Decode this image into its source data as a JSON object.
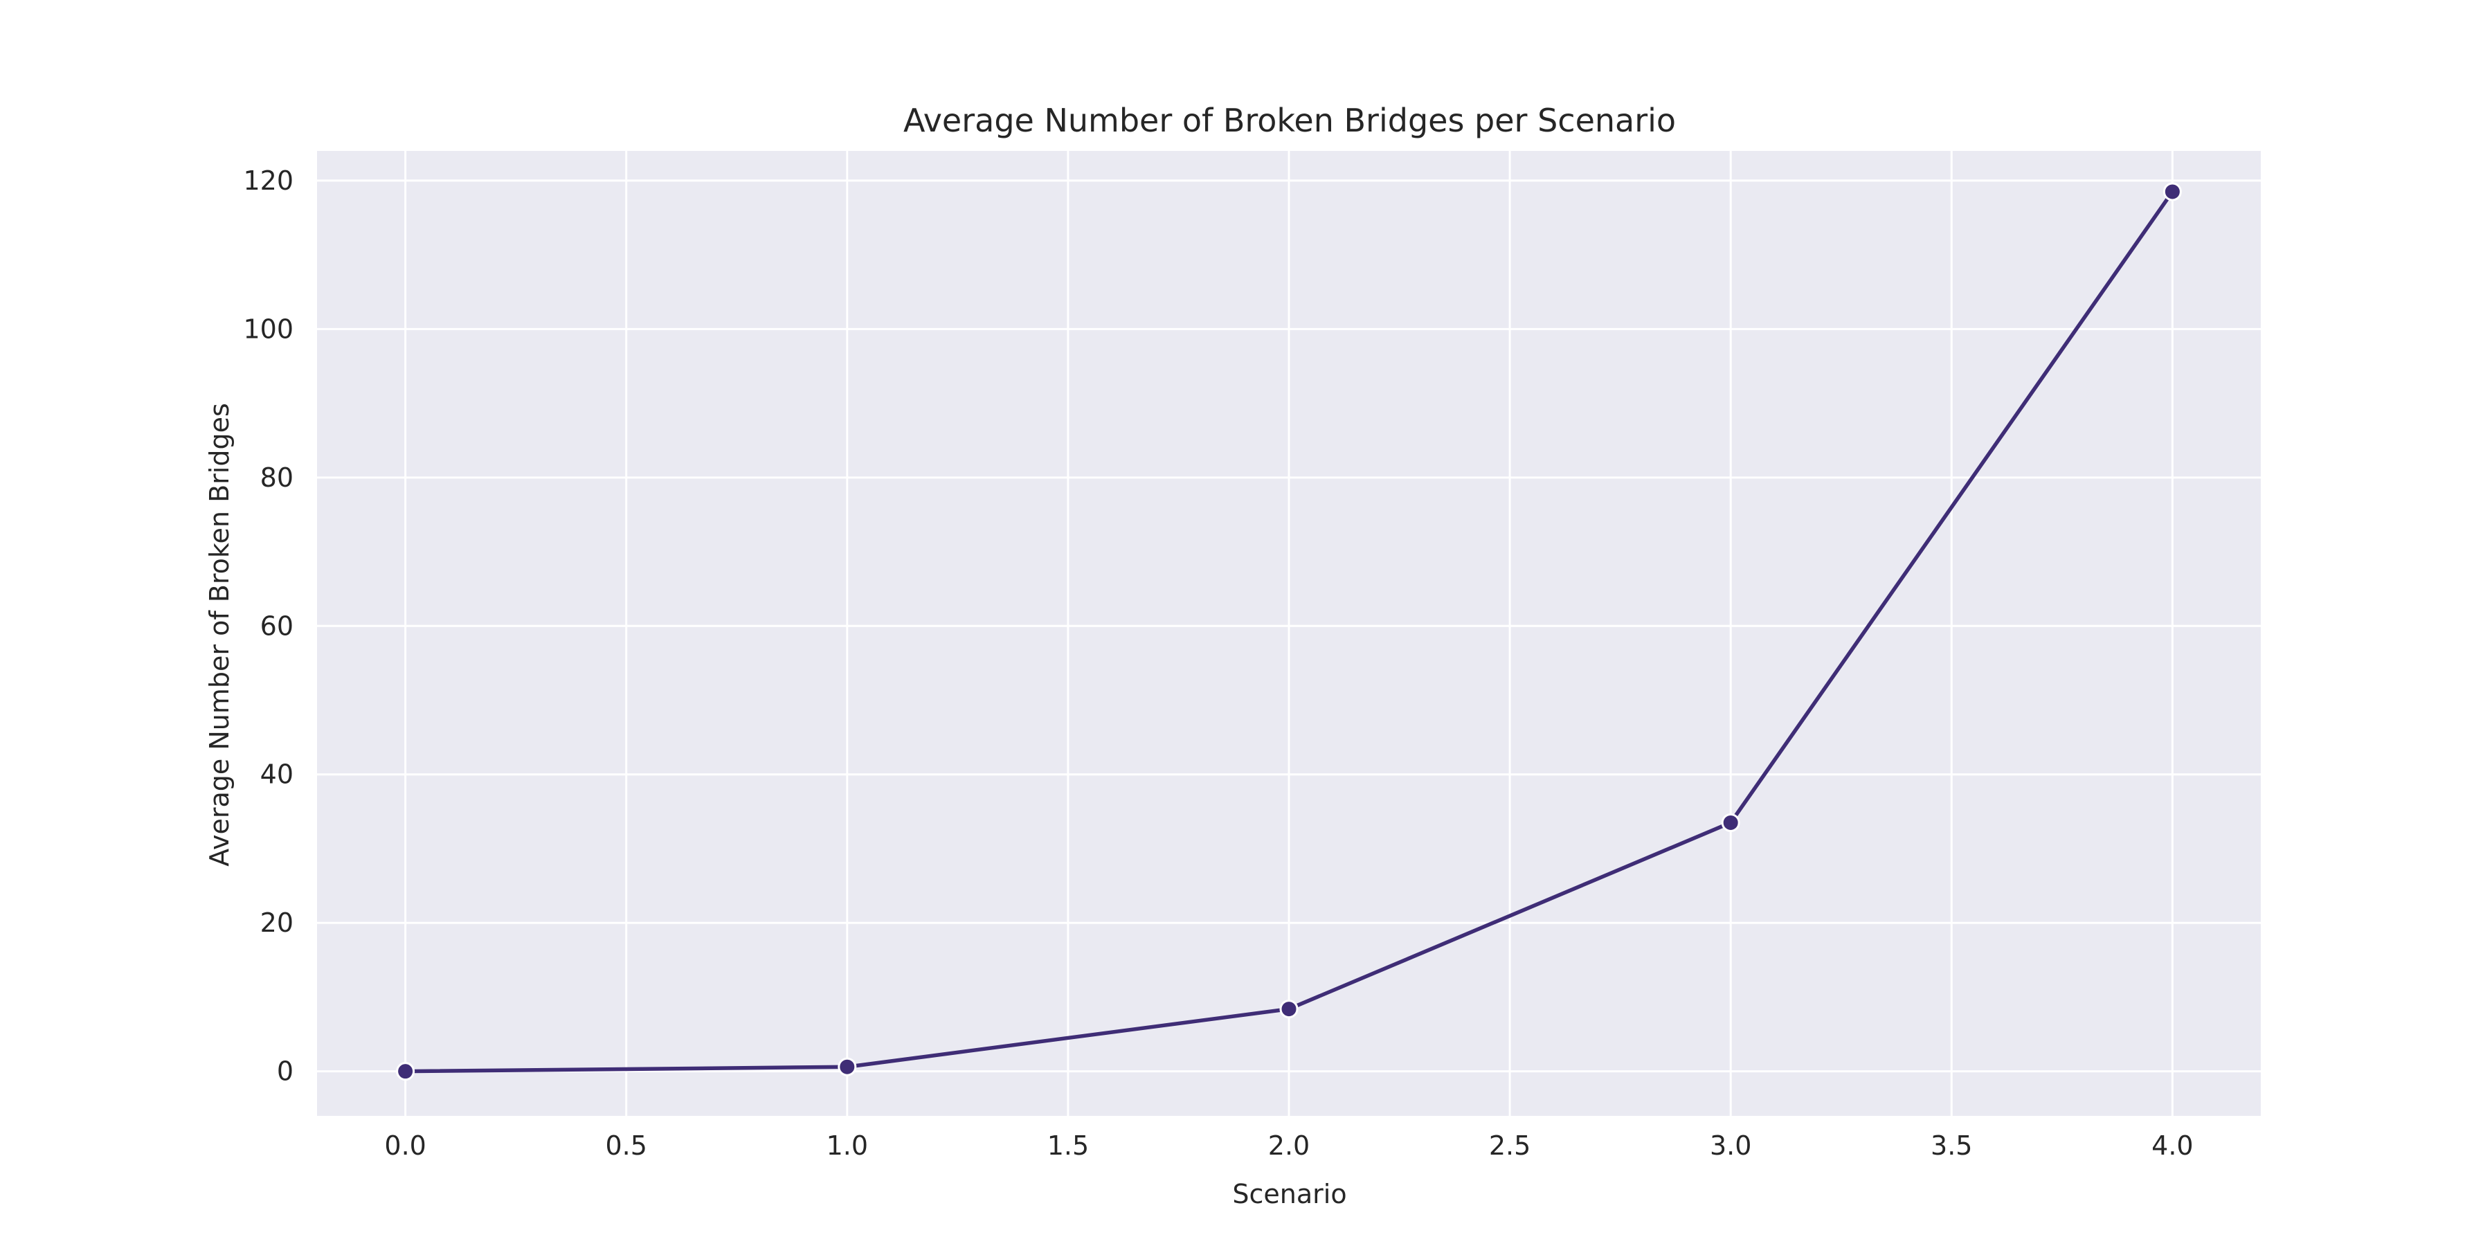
{
  "chart_data": {
    "type": "line",
    "title": "Average Number of Broken Bridges per Scenario",
    "xlabel": "Scenario",
    "ylabel": "Average Number of Broken Bridges",
    "xlim": [
      -0.2,
      4.2
    ],
    "ylim": [
      -6,
      124
    ],
    "xticks": [
      0.0,
      0.5,
      1.0,
      1.5,
      2.0,
      2.5,
      3.0,
      3.5,
      4.0
    ],
    "xtick_labels": [
      "0.0",
      "0.5",
      "1.0",
      "1.5",
      "2.0",
      "2.5",
      "3.0",
      "3.5",
      "4.0"
    ],
    "yticks": [
      0,
      20,
      40,
      60,
      80,
      100,
      120
    ],
    "ytick_labels": [
      "0",
      "20",
      "40",
      "60",
      "80",
      "100",
      "120"
    ],
    "grid": true,
    "legend": "none",
    "colors": {
      "series": "#3f2d76",
      "plot_background": "#eaeaf2",
      "grid": "#ffffff",
      "text": "#262626"
    },
    "series": [
      {
        "x": [
          0,
          1,
          2,
          3,
          4
        ],
        "values": [
          0,
          0.6,
          8.4,
          33.5,
          118.5
        ]
      }
    ]
  }
}
